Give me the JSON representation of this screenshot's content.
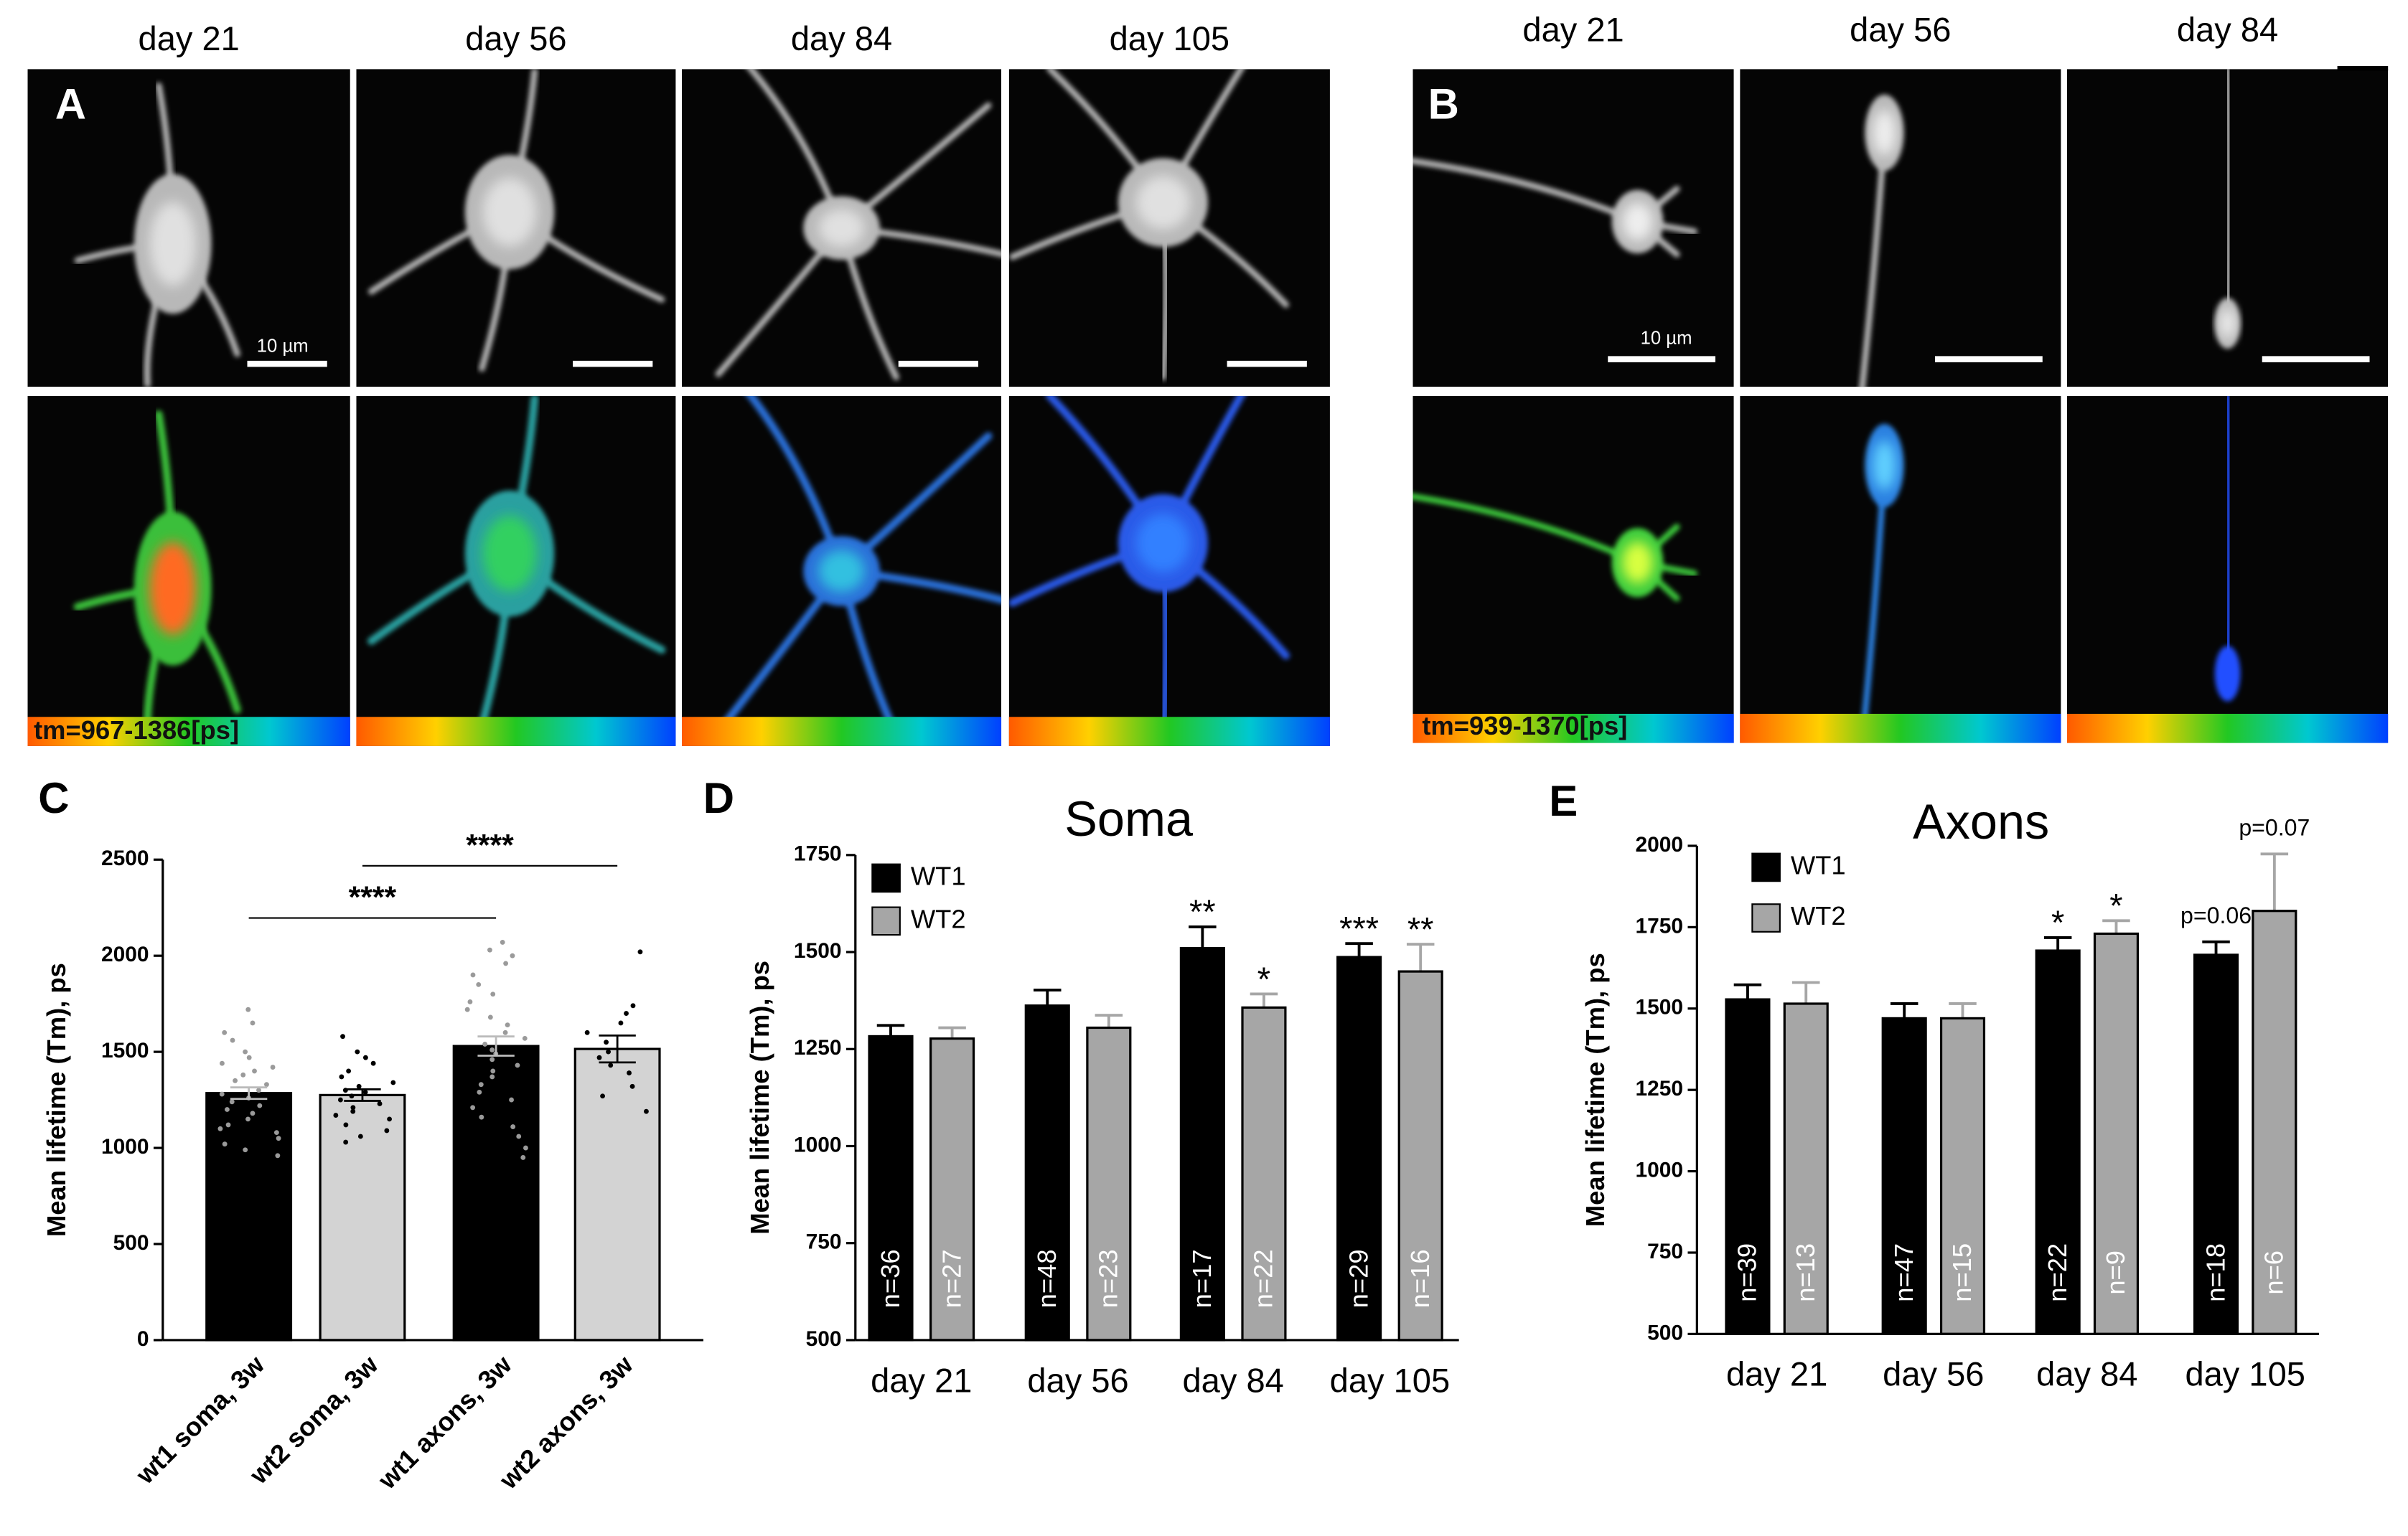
{
  "panel_a": {
    "letter": "A",
    "days": [
      "day 21",
      "day 56",
      "day 84",
      "day 105"
    ],
    "scale_label": "10 µm",
    "range_label": "tm=967-1386[ps]"
  },
  "panel_b": {
    "letter": "B",
    "days": [
      "day 21",
      "day 56",
      "day 84"
    ],
    "scale_label": "10 µm",
    "range_label": "tm=939-1370[ps]"
  },
  "chart_data": [
    {
      "type": "bar",
      "letter": "C",
      "ylabel": "Mean lifetime (Tm), ps",
      "categories": [
        "wt1 soma, 3w",
        "wt2 soma, 3w",
        "wt1 axons, 3w",
        "wt2 axons, 3w"
      ],
      "values": [
        1285,
        1275,
        1530,
        1515
      ],
      "errors": [
        30,
        30,
        50,
        70
      ],
      "colors": [
        "#000000",
        "#d3d3d3",
        "#000000",
        "#d3d3d3"
      ],
      "point_colors": [
        "#9a9a9a",
        "#000000",
        "#9a9a9a",
        "#000000"
      ],
      "points": [
        [
          1720,
          1650,
          1600,
          1560,
          1500,
          1470,
          1440,
          1420,
          1400,
          1380,
          1350,
          1330,
          1300,
          1280,
          1260,
          1240,
          1220,
          1200,
          1180,
          1150,
          1120,
          1100,
          1080,
          1050,
          1020,
          990,
          960
        ],
        [
          1580,
          1500,
          1470,
          1440,
          1400,
          1370,
          1340,
          1320,
          1300,
          1290,
          1270,
          1250,
          1230,
          1210,
          1190,
          1170,
          1150,
          1120,
          1090,
          1060,
          1030
        ],
        [
          2070,
          2030,
          2000,
          1960,
          1900,
          1850,
          1800,
          1760,
          1720,
          1680,
          1640,
          1600,
          1570,
          1540,
          1510,
          1490,
          1460,
          1430,
          1400,
          1370,
          1330,
          1290,
          1250,
          1210,
          1160,
          1110,
          1060,
          1000,
          950
        ],
        [
          2020,
          1740,
          1700,
          1650,
          1600,
          1550,
          1500,
          1470,
          1430,
          1390,
          1320,
          1270,
          1190
        ]
      ],
      "comparisons": [
        {
          "groups": [
            0,
            2
          ],
          "label": "****"
        },
        {
          "groups": [
            1,
            3
          ],
          "label": "****"
        }
      ],
      "ylim": [
        0,
        2500
      ],
      "yticks": [
        0,
        500,
        1000,
        1500,
        2000,
        2500
      ]
    },
    {
      "type": "grouped_bar",
      "letter": "D",
      "title": "Soma",
      "ylabel": "Mean lifetime (Tm), ps",
      "categories": [
        "day 21",
        "day 56",
        "day 84",
        "day 105"
      ],
      "series": [
        {
          "name": "WT1",
          "color": "#000000",
          "values": [
            1283,
            1362,
            1510,
            1487
          ],
          "errors": [
            28,
            40,
            55,
            35
          ],
          "n_labels": [
            "n=36",
            "n=48",
            "n=17",
            "n=29"
          ],
          "marks": [
            null,
            null,
            "**",
            "***"
          ]
        },
        {
          "name": "WT2",
          "color": "#a6a6a6",
          "values": [
            1277,
            1305,
            1357,
            1450
          ],
          "errors": [
            28,
            32,
            35,
            70
          ],
          "n_labels": [
            "n=27",
            "n=23",
            "n=22",
            "n=16"
          ],
          "marks": [
            null,
            null,
            "*",
            "**"
          ]
        }
      ],
      "ylim": [
        500,
        1750
      ],
      "yticks": [
        500,
        750,
        1000,
        1250,
        1500,
        1750
      ]
    },
    {
      "type": "grouped_bar",
      "letter": "E",
      "title": "Axons",
      "ylabel": "Mean lifetime (Tm), ps",
      "categories": [
        "day 21",
        "day 56",
        "day 84",
        "day 105"
      ],
      "series": [
        {
          "name": "WT1",
          "color": "#000000",
          "values": [
            1528,
            1470,
            1678,
            1665
          ],
          "errors": [
            45,
            45,
            40,
            40
          ],
          "n_labels": [
            "n=39",
            "n=47",
            "n=22",
            "n=18"
          ],
          "marks": [
            null,
            null,
            "*",
            "p=0.06"
          ]
        },
        {
          "name": "WT2",
          "color": "#a6a6a6",
          "values": [
            1515,
            1470,
            1730,
            1800
          ],
          "errors": [
            65,
            45,
            40,
            175
          ],
          "n_labels": [
            "n=13",
            "n=15",
            "n=9",
            "n=6"
          ],
          "marks": [
            null,
            null,
            "*",
            "p=0.07"
          ]
        }
      ],
      "ylim": [
        500,
        2000
      ],
      "yticks": [
        500,
        750,
        1000,
        1250,
        1500,
        1750,
        2000
      ]
    }
  ]
}
